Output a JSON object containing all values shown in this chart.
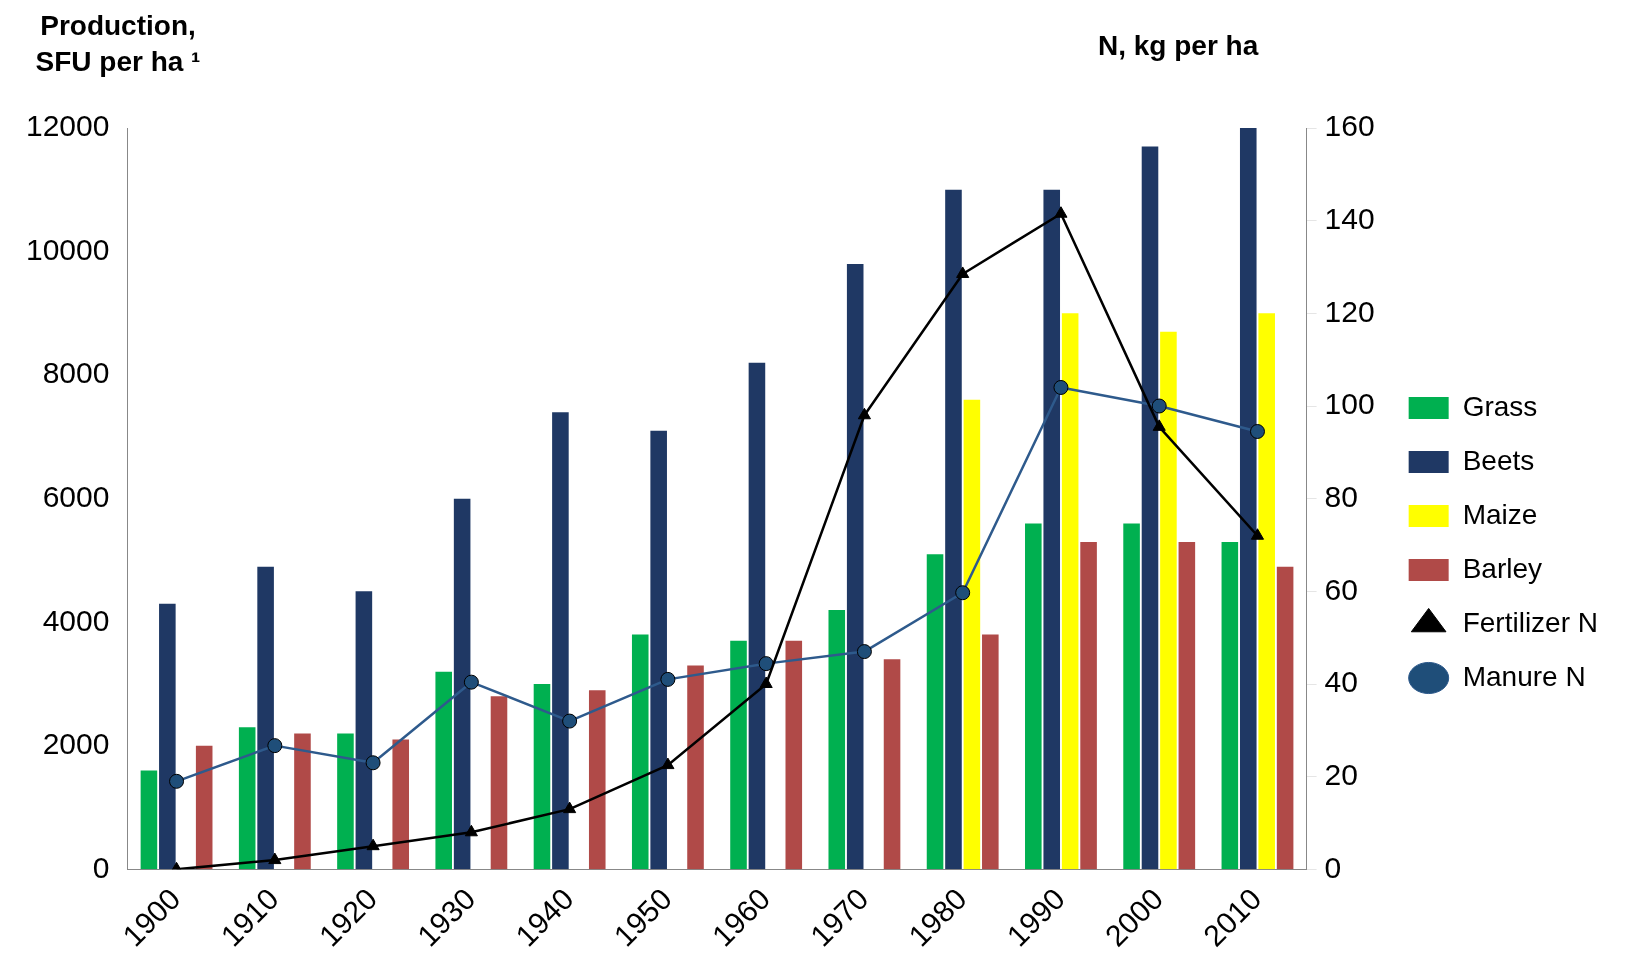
{
  "chart_data": {
    "type": "bar",
    "ylabel": "Production, SFU per ha ¹",
    "y2label": "N, kg per ha",
    "categories": [
      "1900",
      "1910",
      "1920",
      "1930",
      "1940",
      "1950",
      "1960",
      "1970",
      "1980",
      "1990",
      "2000",
      "2010"
    ],
    "series": [
      {
        "name": "Grass",
        "color": "#00b050",
        "values": [
          1600,
          2300,
          2200,
          3200,
          3000,
          3800,
          3700,
          4200,
          5100,
          5600,
          5600,
          5300
        ]
      },
      {
        "name": "Beets",
        "color": "#1f3864",
        "values": [
          4300,
          4900,
          4500,
          6000,
          7400,
          7100,
          8200,
          9800,
          11000,
          11000,
          11700,
          12000
        ]
      },
      {
        "name": "Maize",
        "color": "#ffff00",
        "values": [
          null,
          null,
          null,
          null,
          null,
          null,
          null,
          null,
          7600,
          9000,
          8700,
          9000
        ]
      },
      {
        "name": "Barley",
        "color": "#b04a48",
        "values": [
          2000,
          2200,
          2100,
          2800,
          2900,
          3300,
          3700,
          3400,
          3800,
          5300,
          5300,
          4900
        ]
      },
      {
        "name": "Fertilizer N",
        "type": "line",
        "axis": "y2",
        "marker": "triangle",
        "color": "#000000",
        "values": [
          0,
          2,
          5,
          8,
          13,
          22.5,
          40,
          98,
          128.5,
          141.5,
          95.5,
          72
        ]
      },
      {
        "name": "Manure N",
        "type": "line",
        "axis": "y2",
        "marker": "circle",
        "color": "#2e5a8c",
        "values": [
          19,
          26.7,
          23,
          40.4,
          32,
          41,
          44.4,
          47,
          59.7,
          104,
          100,
          94.5
        ]
      }
    ],
    "ylim": [
      0,
      12000
    ],
    "yticks": [
      0,
      2000,
      4000,
      6000,
      8000,
      10000,
      12000
    ],
    "y2lim": [
      0,
      160
    ],
    "y2ticks": [
      0,
      20,
      40,
      60,
      80,
      100,
      120,
      140,
      160
    ],
    "grid": false,
    "legend": "right"
  }
}
